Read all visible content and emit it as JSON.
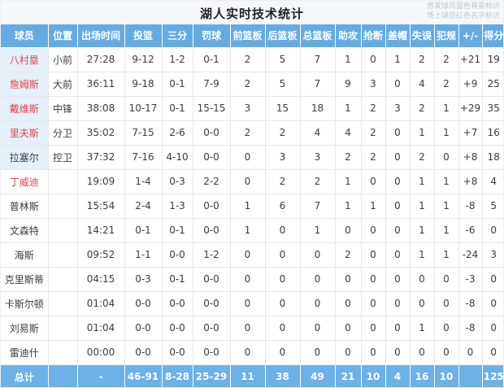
{
  "title": "湖人实时技术统计",
  "legend": {
    "line1": "首发球员蓝色背景标识",
    "line2": "场上球员红色名字标识"
  },
  "colors": {
    "header_bg": "#64abe4",
    "total_bg": "#6cb1e8",
    "starter_bg": "#e4f0fa",
    "oncourt_name_red": "#e4434f"
  },
  "table": {
    "headers": [
      "球员",
      "位置",
      "出场时间",
      "投篮",
      "三分",
      "罚球",
      "前篮板",
      "后篮板",
      "总篮板",
      "助攻",
      "抢断",
      "盖帽",
      "失误",
      "犯规",
      "+/-",
      "得分"
    ],
    "rows": [
      {
        "name": "八村塁",
        "starter": true,
        "on_court": true,
        "cells": [
          "小前",
          "27:28",
          "9-12",
          "1-2",
          "0-1",
          "2",
          "5",
          "7",
          "1",
          "0",
          "1",
          "2",
          "2",
          "+21",
          "19"
        ]
      },
      {
        "name": "詹姆斯",
        "starter": true,
        "on_court": true,
        "cells": [
          "大前",
          "36:11",
          "9-18",
          "0-1",
          "7-9",
          "2",
          "5",
          "7",
          "9",
          "3",
          "0",
          "4",
          "2",
          "+9",
          "25"
        ]
      },
      {
        "name": "戴维斯",
        "starter": true,
        "on_court": true,
        "cells": [
          "中锋",
          "38:08",
          "10-17",
          "0-1",
          "15-15",
          "3",
          "15",
          "18",
          "1",
          "2",
          "3",
          "2",
          "1",
          "+29",
          "35"
        ]
      },
      {
        "name": "里夫斯",
        "starter": true,
        "on_court": true,
        "cells": [
          "分卫",
          "35:02",
          "7-15",
          "2-6",
          "0-0",
          "2",
          "2",
          "4",
          "4",
          "2",
          "0",
          "1",
          "1",
          "+7",
          "16"
        ]
      },
      {
        "name": "拉塞尔",
        "starter": true,
        "on_court": false,
        "cells": [
          "控卫",
          "37:32",
          "7-16",
          "4-10",
          "0-0",
          "0",
          "3",
          "3",
          "2",
          "2",
          "0",
          "2",
          "0",
          "+8",
          "18"
        ]
      },
      {
        "name": "丁威迪",
        "starter": false,
        "on_court": true,
        "cells": [
          "",
          "19:09",
          "1-4",
          "0-3",
          "2-2",
          "0",
          "2",
          "2",
          "1",
          "0",
          "0",
          "1",
          "1",
          "+8",
          "4"
        ]
      },
      {
        "name": "普林斯",
        "starter": false,
        "on_court": false,
        "cells": [
          "",
          "15:54",
          "2-4",
          "1-3",
          "0-0",
          "1",
          "6",
          "7",
          "1",
          "1",
          "0",
          "1",
          "1",
          "-8",
          "5"
        ]
      },
      {
        "name": "文森特",
        "starter": false,
        "on_court": false,
        "cells": [
          "",
          "14:21",
          "0-1",
          "0-1",
          "0-0",
          "1",
          "0",
          "1",
          "0",
          "0",
          "0",
          "1",
          "1",
          "-6",
          "0"
        ]
      },
      {
        "name": "海斯",
        "starter": false,
        "on_court": false,
        "cells": [
          "",
          "09:52",
          "1-1",
          "0-0",
          "1-2",
          "0",
          "0",
          "0",
          "2",
          "0",
          "0",
          "1",
          "1",
          "-24",
          "3"
        ]
      },
      {
        "name": "克里斯蒂",
        "starter": false,
        "on_court": false,
        "cells": [
          "",
          "04:15",
          "0-3",
          "0-1",
          "0-0",
          "0",
          "0",
          "0",
          "0",
          "0",
          "0",
          "0",
          "0",
          "-3",
          "0"
        ]
      },
      {
        "name": "卡斯尔顿",
        "starter": false,
        "on_court": false,
        "cells": [
          "",
          "01:04",
          "0-0",
          "0-0",
          "0-0",
          "0",
          "0",
          "0",
          "0",
          "0",
          "0",
          "0",
          "0",
          "-8",
          "0"
        ]
      },
      {
        "name": "刘易斯",
        "starter": false,
        "on_court": false,
        "cells": [
          "",
          "01:04",
          "0-0",
          "0-0",
          "0-0",
          "0",
          "0",
          "0",
          "0",
          "0",
          "0",
          "1",
          "0",
          "-8",
          "0"
        ]
      },
      {
        "name": "雷迪什",
        "starter": false,
        "on_court": false,
        "cells": [
          "",
          "00:00",
          "0-0",
          "0-0",
          "0-0",
          "0",
          "0",
          "0",
          "0",
          "0",
          "0",
          "0",
          "0",
          "0",
          "0"
        ]
      }
    ],
    "total": {
      "label": "总计",
      "cells": [
        "",
        "-",
        "46-91",
        "8-28",
        "25-29",
        "11",
        "38",
        "49",
        "21",
        "10",
        "4",
        "16",
        "10",
        "",
        "125"
      ]
    }
  }
}
